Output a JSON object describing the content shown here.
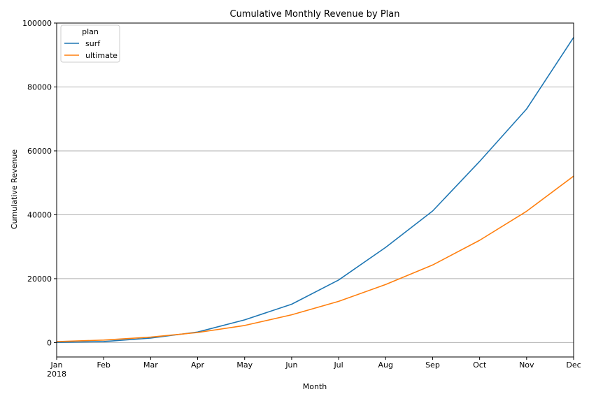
{
  "chart_data": {
    "type": "line",
    "title": "Cumulative Monthly Revenue by Plan",
    "xlabel": "Month",
    "ylabel": "Cumulative Revenue",
    "categories": [
      "Jan\n2018",
      "Feb",
      "Mar",
      "Apr",
      "May",
      "Jun",
      "Jul",
      "Aug",
      "Sep",
      "Oct",
      "Nov",
      "Dec"
    ],
    "ylim": [
      -4500,
      100000
    ],
    "yticks": [
      0,
      20000,
      40000,
      60000,
      80000,
      100000
    ],
    "grid": "y",
    "legend": {
      "title": "plan",
      "position": "top-left"
    },
    "series": [
      {
        "name": "surf",
        "color": "#1f77b4",
        "values": [
          40,
          330,
          1400,
          3300,
          7100,
          12000,
          19600,
          29800,
          41200,
          56700,
          73100,
          95500
        ]
      },
      {
        "name": "ultimate",
        "color": "#ff7f0e",
        "values": [
          300,
          780,
          1700,
          3150,
          5350,
          8700,
          12900,
          18200,
          24300,
          32000,
          41100,
          52100
        ]
      }
    ]
  }
}
